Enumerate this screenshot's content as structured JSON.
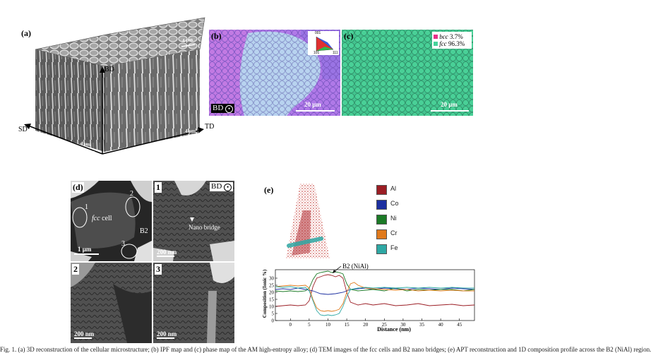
{
  "panel_a": {
    "label": "(a)",
    "axes": {
      "bd": "BD",
      "sd": "SD",
      "td": "TD"
    },
    "scale_top": "4 μm",
    "scale_right": "4 μm",
    "scale_left": "4 μm"
  },
  "panel_b": {
    "label": "(b)",
    "direction": "BD",
    "scale": "20 μm",
    "ipf_key": {
      "top": "001",
      "left": "101",
      "right": "111"
    }
  },
  "panel_c": {
    "label": "(c)",
    "scale": "20 μm",
    "legend": [
      {
        "phase": "bcc",
        "value": "3.7%",
        "color": "#e8308a"
      },
      {
        "phase": "fcc",
        "value": "96.3%",
        "color": "#46d39b"
      }
    ]
  },
  "panel_d": {
    "label": "(d)",
    "sub1_label": "1",
    "sub2_label": "2",
    "sub3_label": "3",
    "direction": "BD",
    "main": {
      "markers": [
        "1",
        "2",
        "3"
      ],
      "cell_label_italic": "fcc",
      "cell_label_rest": " cell",
      "b2_label": "B2",
      "scale": "1 μm"
    },
    "sub1": {
      "scale": "200 nm",
      "annotation": "Nano bridge"
    },
    "sub2": {
      "scale": "200 nm"
    },
    "sub3": {
      "scale": "200 nm"
    }
  },
  "panel_e": {
    "label": "(e)",
    "legend": [
      {
        "element": "Al",
        "color": "#9b1d24"
      },
      {
        "element": "Co",
        "color": "#1c2fa0"
      },
      {
        "element": "Ni",
        "color": "#1b7a26"
      },
      {
        "element": "Cr",
        "color": "#e07a1c"
      },
      {
        "element": "Fe",
        "color": "#2ea8a4"
      }
    ]
  },
  "chart_data": {
    "type": "line",
    "annotation": "B2 (NiAl)",
    "xlabel": "Distance (nm)",
    "ylabel": "Composition (Ionic %)",
    "xlim": [
      -4,
      49
    ],
    "ylim": [
      0,
      36
    ],
    "xticks": [
      0,
      5,
      10,
      15,
      20,
      25,
      30,
      35,
      40,
      45
    ],
    "yticks": [
      0,
      5,
      10,
      15,
      20,
      25,
      30
    ],
    "series": [
      {
        "name": "Al",
        "color": "#9b1d24",
        "x": [
          -4,
          -2,
          0,
          2,
          4,
          5,
          6,
          7,
          8,
          9,
          10,
          11,
          12,
          13,
          14,
          15,
          16,
          18,
          20,
          22,
          25,
          28,
          31,
          34,
          37,
          40,
          43,
          46,
          49
        ],
        "y": [
          10,
          10.5,
          11,
          10.5,
          11,
          14,
          24,
          30,
          31,
          32,
          32.5,
          32,
          31,
          32,
          30,
          20,
          13,
          11,
          12,
          11,
          12,
          10.5,
          11,
          12,
          10.5,
          11,
          11.5,
          10.5,
          11
        ]
      },
      {
        "name": "Co",
        "color": "#1c2fa0",
        "x": [
          -4,
          -2,
          0,
          2,
          4,
          6,
          8,
          10,
          12,
          14,
          16,
          18,
          20,
          22,
          25,
          28,
          31,
          34,
          37,
          40,
          43,
          46,
          49
        ],
        "y": [
          22,
          22.5,
          22,
          23,
          22,
          21,
          19,
          18.5,
          19,
          20,
          22,
          22.5,
          23,
          22,
          23,
          22.5,
          22,
          23,
          22.5,
          22,
          23,
          22.5,
          22
        ]
      },
      {
        "name": "Ni",
        "color": "#1b7a26",
        "x": [
          -4,
          -2,
          0,
          2,
          4,
          5,
          6,
          7,
          8,
          9,
          10,
          11,
          12,
          13,
          14,
          15,
          16,
          18,
          20,
          22,
          25,
          28,
          31,
          34,
          37,
          40,
          43,
          46,
          49
        ],
        "y": [
          21,
          20.5,
          21,
          20.5,
          21,
          23,
          29,
          33,
          34,
          34.5,
          35,
          34,
          34.5,
          34,
          33,
          26,
          22,
          21,
          21.5,
          22,
          21,
          23,
          21,
          22,
          21.5,
          22,
          22,
          21,
          22
        ]
      },
      {
        "name": "Cr",
        "color": "#e07a1c",
        "x": [
          -4,
          -2,
          0,
          2,
          4,
          5,
          6,
          7,
          8,
          9,
          10,
          11,
          12,
          13,
          14,
          15,
          16,
          17,
          18,
          20,
          22,
          25,
          28,
          31,
          34,
          37,
          40,
          43,
          46,
          49
        ],
        "y": [
          24,
          24.5,
          25,
          24.5,
          25,
          23,
          15,
          9,
          7,
          6.5,
          7,
          6.5,
          7,
          8,
          12,
          20,
          26,
          27,
          25,
          23,
          22.5,
          22,
          21.5,
          22,
          21,
          21.5,
          21,
          21.5,
          21,
          21
        ]
      },
      {
        "name": "Fe",
        "color": "#2ea8a4",
        "x": [
          -4,
          -2,
          0,
          2,
          4,
          5,
          6,
          7,
          8,
          9,
          10,
          11,
          12,
          13,
          14,
          15,
          16,
          18,
          20,
          22,
          25,
          28,
          31,
          34,
          37,
          40,
          43,
          46,
          49
        ],
        "y": [
          24,
          23.5,
          24,
          23,
          23.5,
          21,
          14,
          7,
          4,
          3.5,
          4,
          3.5,
          4,
          5,
          10,
          17,
          22,
          23,
          23.5,
          23,
          23.5,
          23,
          23.5,
          23,
          23.5,
          23,
          23.5,
          23,
          23
        ]
      }
    ]
  },
  "caption": "Fig. 1. (a) 3D reconstruction of the cellular microstructure; (b) IPF map and (c) phase map of the AM high-entropy alloy; (d) TEM images of the fcc cells and B2 nano bridges; (e) APT reconstruction and 1D composition profile across the B2 (NiAl) region."
}
